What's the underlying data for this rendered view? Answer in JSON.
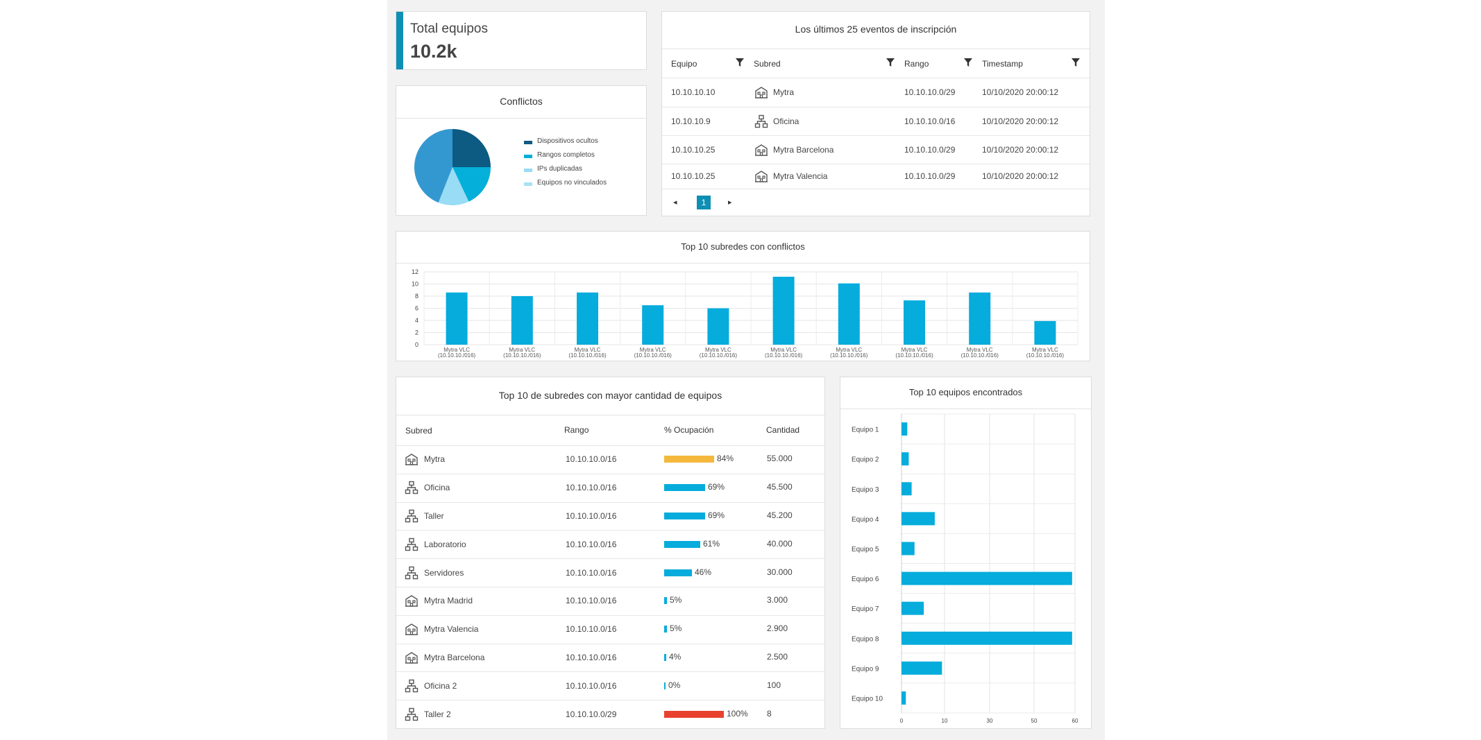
{
  "total": {
    "label": "Total equipos",
    "value": "10.2k",
    "accent": "#0e8fb4"
  },
  "conflicts": {
    "title": "Conflictos",
    "slices": [
      {
        "label": "Dispositivos ocultos",
        "value": 25,
        "color": "#0d5a82"
      },
      {
        "label": "Rangos completos",
        "value": 18,
        "color": "#04afd9"
      },
      {
        "label": "IPs duplicadas",
        "value": 13,
        "color": "#99dcf5"
      },
      {
        "label": "Equipos no vinculados",
        "value": 44,
        "color": "#3498d0"
      }
    ],
    "legend_colors": [
      "#0d5a82",
      "#04afd9",
      "#99dcf5",
      "#a8e1f5"
    ]
  },
  "events": {
    "title": "Los últimos 25 eventos de inscripción",
    "columns": [
      "Equipo",
      "Subred",
      "Rango",
      "Timestamp"
    ],
    "rows": [
      {
        "equipo": "10.10.10.10",
        "icon": "building-icon",
        "subred": "Mytra",
        "rango": "10.10.10.0/29",
        "ts": "10/10/2020 20:00:12"
      },
      {
        "equipo": "10.10.10.9",
        "icon": "network-icon",
        "subred": "Oficina",
        "rango": "10.10.10.0/16",
        "ts": "10/10/2020 20:00:12"
      },
      {
        "equipo": "10.10.10.25",
        "icon": "building-icon",
        "subred": "Mytra Barcelona",
        "rango": "10.10.10.0/29",
        "ts": "10/10/2020 20:00:12"
      },
      {
        "equipo": "10.10.10.25",
        "icon": "building-icon",
        "subred": "Mytra Valencia",
        "rango": "10.10.10.0/29",
        "ts": "10/10/2020 20:00:12"
      }
    ],
    "pagination": {
      "prev": "◂",
      "page": "1",
      "next": "▸"
    }
  },
  "chart_data": [
    {
      "type": "bar",
      "title": "Top 10 subredes con conflictos",
      "categories": [
        "Mytra VLC (10.10.10./016)",
        "Mytra VLC (10.10.10./016)",
        "Mytra VLC (10.10.10./016)",
        "Mytra VLC (10.10.10./016)",
        "Mytra VLC (10.10.10./016)",
        "Mytra VLC (10.10.10./016)",
        "Mytra VLC (10.10.10./016)",
        "Mytra VLC (10.10.10./016)",
        "Mytra VLC (10.10.10./016)",
        "Mytra VLC (10.10.10./016)"
      ],
      "category_lines": [
        "Mytra VLC",
        "(10.10.10./016)"
      ],
      "values": [
        8.6,
        8.0,
        8.6,
        6.5,
        6.0,
        11.2,
        10.1,
        7.3,
        8.6,
        3.9
      ],
      "yticks": [
        0,
        2,
        4,
        6,
        8,
        10,
        12
      ],
      "ylim": [
        0,
        12
      ],
      "grid": true,
      "color": "#05acdc"
    },
    {
      "type": "bar",
      "orientation": "horizontal",
      "title": "Top 10 equipos encontrados",
      "categories": [
        "Equipo 1",
        "Equipo 2",
        "Equipo 3",
        "Equipo 4",
        "Equipo 5",
        "Equipo 6",
        "Equipo 7",
        "Equipo 8",
        "Equipo 9",
        "Equipo 10"
      ],
      "values": [
        2,
        2.5,
        3.5,
        11.5,
        4.5,
        59,
        7.7,
        59,
        14,
        1.5
      ],
      "xticks": [
        0,
        10,
        30,
        50,
        60
      ],
      "xlim": [
        0,
        60
      ],
      "grid": true,
      "color": "#05acdc"
    }
  ],
  "subnets": {
    "title": "Top 10 de subredes con mayor cantidad de equipos",
    "columns": [
      "Subred",
      "Rango",
      "% Ocupación",
      "Cantidad"
    ],
    "rows": [
      {
        "icon": "building-icon",
        "name": "Mytra",
        "rango": "10.10.10.0/16",
        "pct": 84,
        "pct_label": "84%",
        "color": "#f4b83c",
        "cantidad": "55.000"
      },
      {
        "icon": "network-icon",
        "name": "Oficina",
        "rango": "10.10.10.0/16",
        "pct": 69,
        "pct_label": "69%",
        "color": "#05acdc",
        "cantidad": "45.500"
      },
      {
        "icon": "network-icon",
        "name": "Taller",
        "rango": "10.10.10.0/16",
        "pct": 69,
        "pct_label": "69%",
        "color": "#05acdc",
        "cantidad": "45.200"
      },
      {
        "icon": "network-icon",
        "name": "Laboratorio",
        "rango": "10.10.10.0/16",
        "pct": 61,
        "pct_label": "61%",
        "color": "#05acdc",
        "cantidad": "40.000"
      },
      {
        "icon": "network-icon",
        "name": "Servidores",
        "rango": "10.10.10.0/16",
        "pct": 46,
        "pct_label": "46%",
        "color": "#05acdc",
        "cantidad": "30.000"
      },
      {
        "icon": "building-icon",
        "name": "Mytra Madrid",
        "rango": "10.10.10.0/16",
        "pct": 5,
        "pct_label": "5%",
        "color": "#05acdc",
        "cantidad": "3.000"
      },
      {
        "icon": "building-icon",
        "name": "Mytra Valencia",
        "rango": "10.10.10.0/16",
        "pct": 5,
        "pct_label": "5%",
        "color": "#05acdc",
        "cantidad": "2.900"
      },
      {
        "icon": "building-icon",
        "name": "Mytra Barcelona",
        "rango": "10.10.10.0/16",
        "pct": 4,
        "pct_label": "4%",
        "color": "#05acdc",
        "cantidad": "2.500"
      },
      {
        "icon": "network-icon",
        "name": "Oficina 2",
        "rango": "10.10.10.0/16",
        "pct": 0,
        "pct_label": "0%",
        "color": "#05acdc",
        "cantidad": "100"
      },
      {
        "icon": "network-icon",
        "name": "Taller 2",
        "rango": "10.10.10.0/29",
        "pct": 100,
        "pct_label": "100%",
        "color": "#e8412e",
        "cantidad": "8"
      }
    ]
  }
}
